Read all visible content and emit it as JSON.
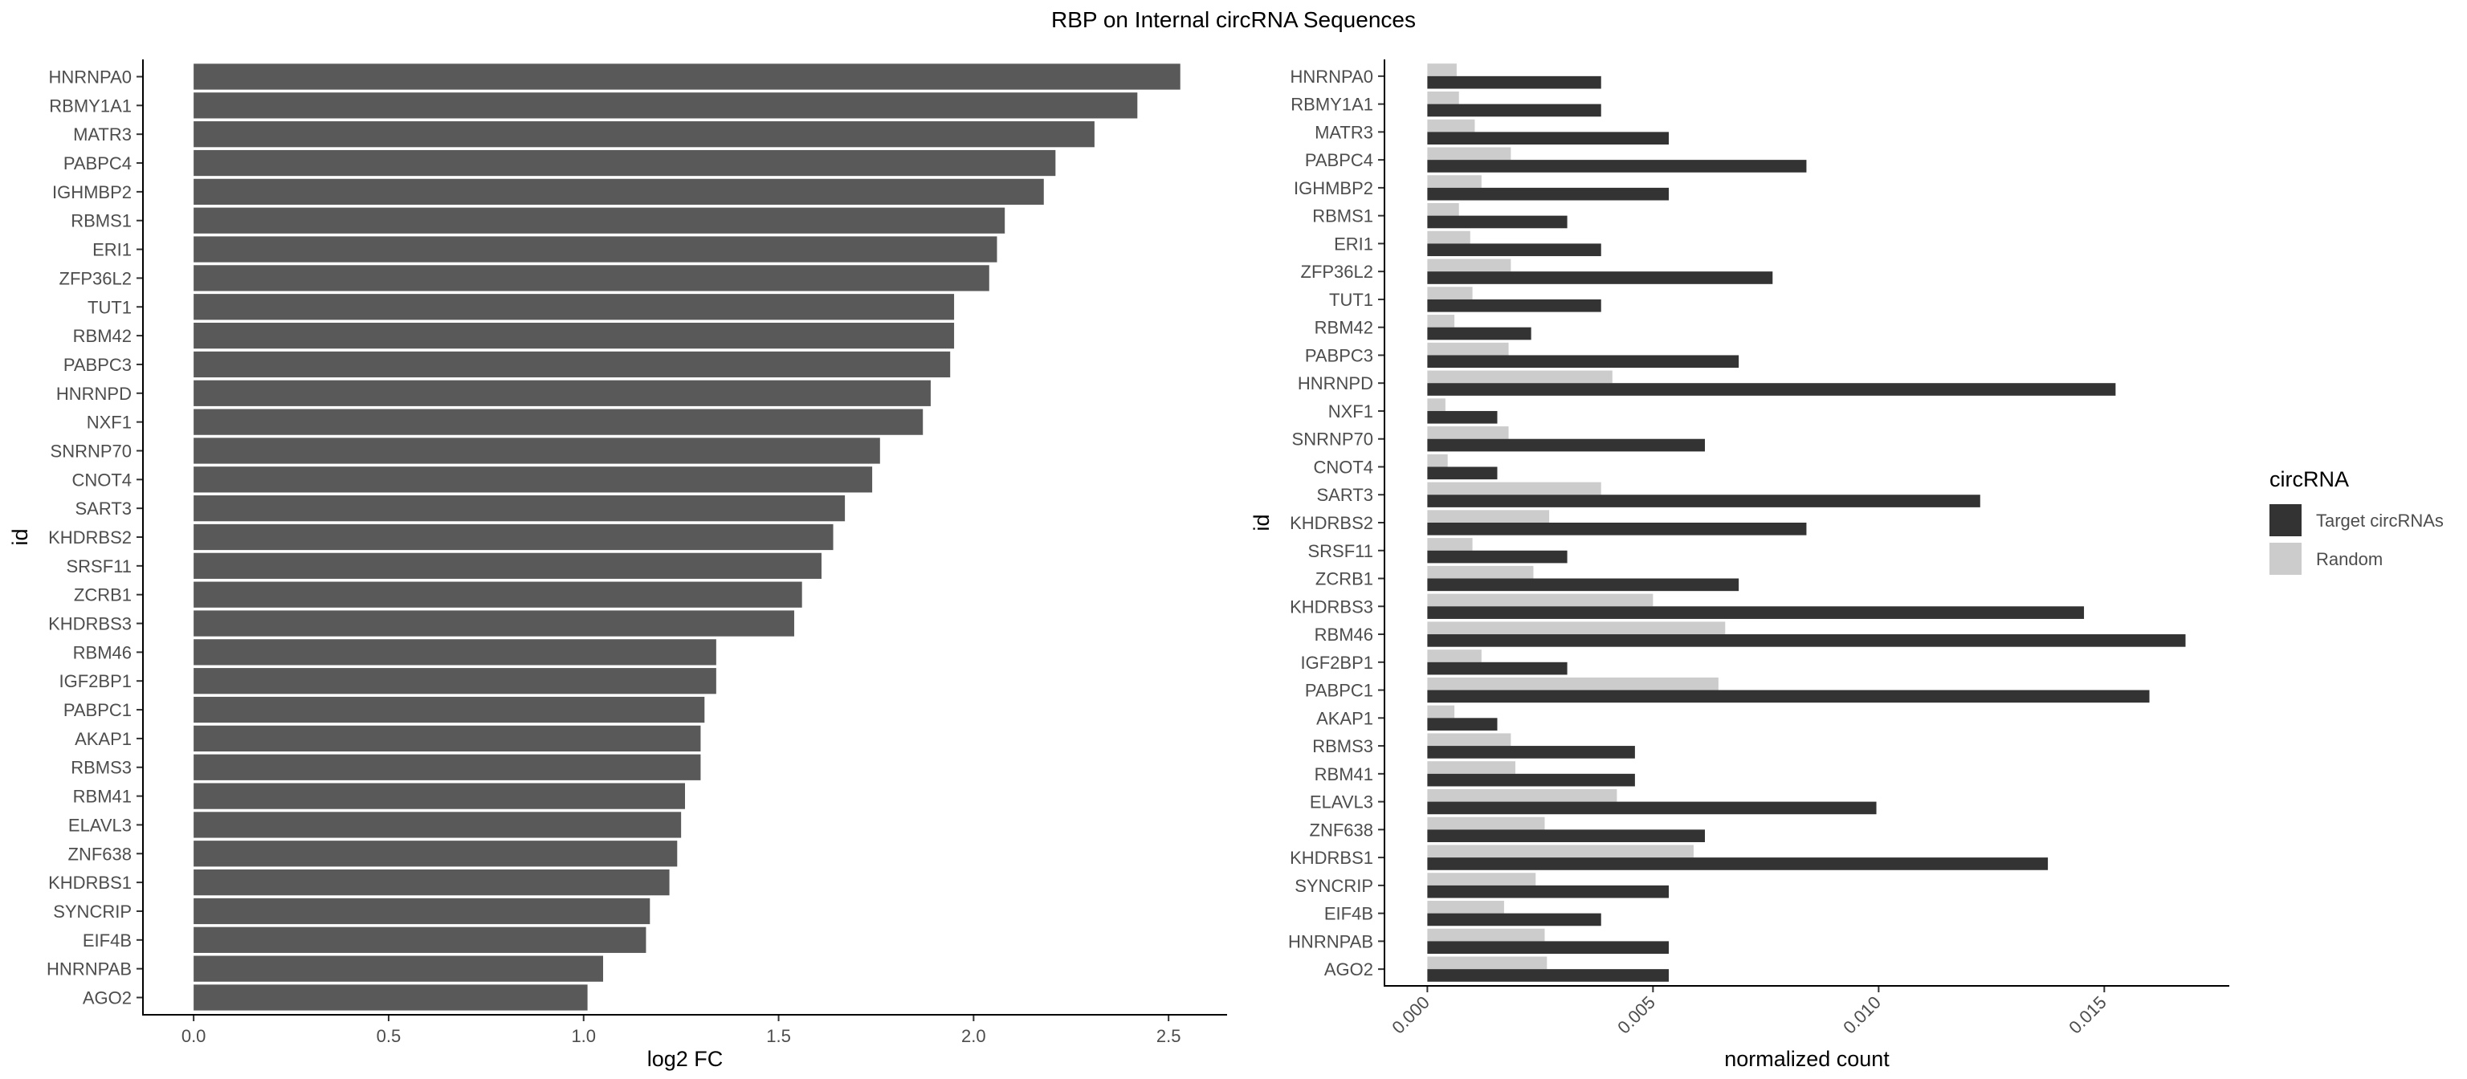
{
  "title": "RBP on Internal circRNA Sequences",
  "colors": {
    "target": "#333333",
    "random": "#cccccc",
    "single": "#595959",
    "axis": "#000000",
    "tick_text": "#4d4d4d"
  },
  "chart_data": [
    {
      "type": "bar",
      "orientation": "horizontal",
      "xlabel": "log2 FC",
      "ylabel": "id",
      "xlim": [
        -0.13,
        2.65
      ],
      "xticks": [
        0.0,
        0.5,
        1.0,
        1.5,
        2.0,
        2.5
      ],
      "xtick_labels": [
        "0.0",
        "0.5",
        "1.0",
        "1.5",
        "2.0",
        "2.5"
      ],
      "grid": false,
      "categories": [
        "HNRNPA0",
        "RBMY1A1",
        "MATR3",
        "PABPC4",
        "IGHMBP2",
        "RBMS1",
        "ERI1",
        "ZFP36L2",
        "TUT1",
        "RBM42",
        "PABPC3",
        "HNRNPD",
        "NXF1",
        "SNRNP70",
        "CNOT4",
        "SART3",
        "KHDRBS2",
        "SRSF11",
        "ZCRB1",
        "KHDRBS3",
        "RBM46",
        "IGF2BP1",
        "PABPC1",
        "AKAP1",
        "RBMS3",
        "RBM41",
        "ELAVL3",
        "ZNF638",
        "KHDRBS1",
        "SYNCRIP",
        "EIF4B",
        "HNRNPAB",
        "AGO2"
      ],
      "values": [
        2.53,
        2.42,
        2.31,
        2.21,
        2.18,
        2.08,
        2.06,
        2.04,
        1.95,
        1.95,
        1.94,
        1.89,
        1.87,
        1.76,
        1.74,
        1.67,
        1.64,
        1.61,
        1.56,
        1.54,
        1.34,
        1.34,
        1.31,
        1.3,
        1.3,
        1.26,
        1.25,
        1.24,
        1.22,
        1.17,
        1.16,
        1.05,
        1.01
      ]
    },
    {
      "type": "bar",
      "orientation": "horizontal",
      "xlabel": "normalized count",
      "ylabel": "id",
      "xlim": [
        -0.00095,
        0.01777
      ],
      "xticks": [
        0.0,
        0.005,
        0.01,
        0.015
      ],
      "xtick_labels": [
        "0.000",
        "0.005",
        "0.010",
        "0.015"
      ],
      "grid": false,
      "legend": {
        "title": "circRNA",
        "position": "right"
      },
      "categories": [
        "HNRNPA0",
        "RBMY1A1",
        "MATR3",
        "PABPC4",
        "IGHMBP2",
        "RBMS1",
        "ERI1",
        "ZFP36L2",
        "TUT1",
        "RBM42",
        "PABPC3",
        "HNRNPD",
        "NXF1",
        "SNRNP70",
        "CNOT4",
        "SART3",
        "KHDRBS2",
        "SRSF11",
        "ZCRB1",
        "KHDRBS3",
        "RBM46",
        "IGF2BP1",
        "PABPC1",
        "AKAP1",
        "RBMS3",
        "RBM41",
        "ELAVL3",
        "ZNF638",
        "KHDRBS1",
        "SYNCRIP",
        "EIF4B",
        "HNRNPAB",
        "AGO2"
      ],
      "series": [
        {
          "name": "Target circRNAs",
          "values": [
            0.00385,
            0.00385,
            0.00535,
            0.0084,
            0.00535,
            0.0031,
            0.00385,
            0.00765,
            0.00385,
            0.0023,
            0.0069,
            0.01525,
            0.00155,
            0.00615,
            0.00155,
            0.01225,
            0.0084,
            0.0031,
            0.0069,
            0.01455,
            0.0168,
            0.0031,
            0.016,
            0.00155,
            0.0046,
            0.0046,
            0.00995,
            0.00615,
            0.01375,
            0.00535,
            0.00385,
            0.00535,
            0.00535
          ]
        },
        {
          "name": "Random",
          "values": [
            0.00065,
            0.0007,
            0.00105,
            0.00185,
            0.0012,
            0.0007,
            0.00095,
            0.00185,
            0.001,
            0.0006,
            0.0018,
            0.0041,
            0.0004,
            0.0018,
            0.00045,
            0.00385,
            0.0027,
            0.001,
            0.00235,
            0.005,
            0.0066,
            0.0012,
            0.00645,
            0.0006,
            0.00185,
            0.00195,
            0.0042,
            0.0026,
            0.0059,
            0.0024,
            0.0017,
            0.0026,
            0.00265
          ]
        }
      ]
    }
  ]
}
